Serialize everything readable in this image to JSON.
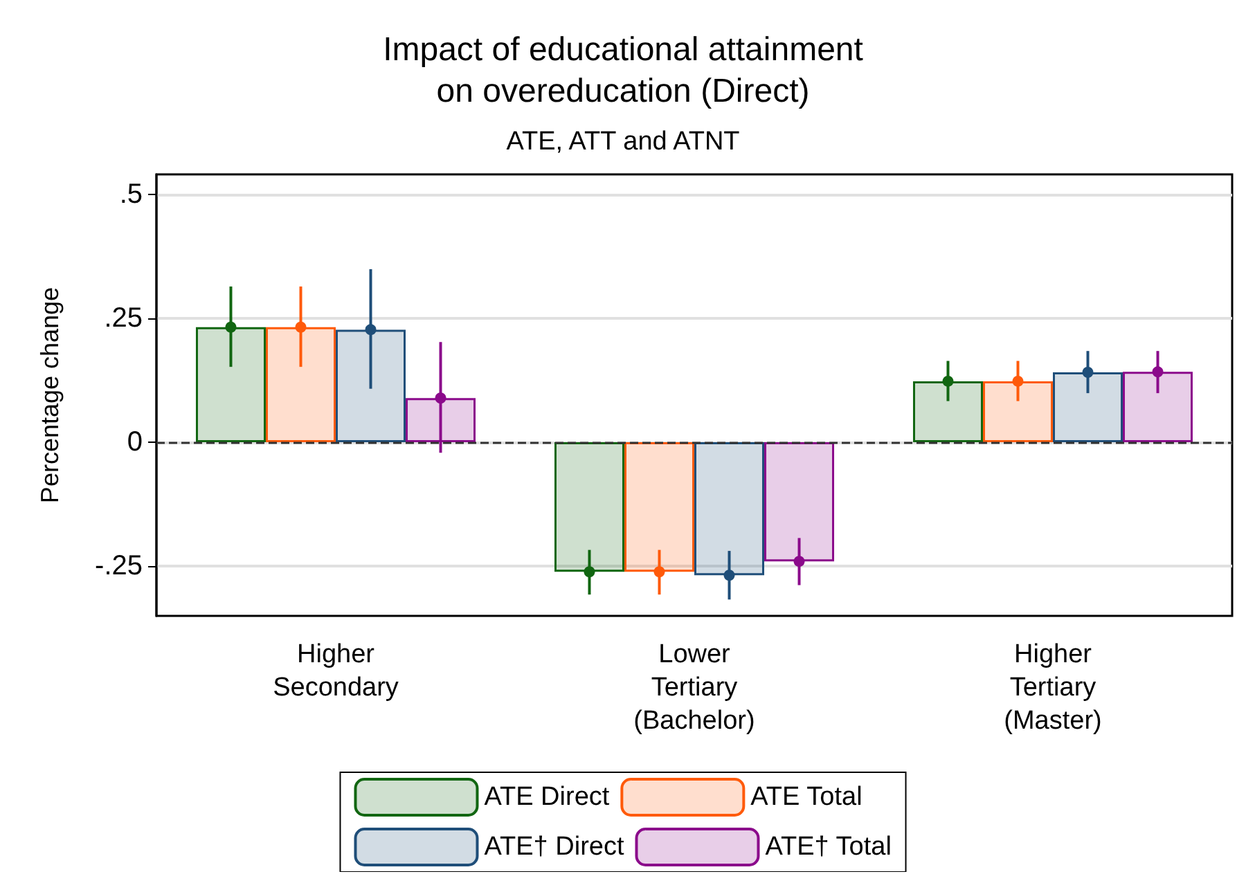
{
  "chart_data": {
    "type": "bar",
    "title": "Impact of educational attainment\non overeducation (Direct)",
    "subtitle": "ATE, ATT and ATNT",
    "ylabel": "Percentage change",
    "categories": [
      "Higher\nSecondary",
      "Lower\nTertiary\n(Bachelor)",
      "Higher\nTertiary\n(Master)"
    ],
    "series": [
      {
        "name": "ATE Direct",
        "color": "#116611",
        "values": [
          0.232,
          -0.261,
          0.123
        ]
      },
      {
        "name": "ATE Total",
        "color": "#ff5a0a",
        "values": [
          0.232,
          -0.261,
          0.123
        ]
      },
      {
        "name": "ATE† Direct",
        "color": "#1f4e79",
        "values": [
          0.227,
          -0.268,
          0.141
        ]
      },
      {
        "name": "ATE† Total",
        "color": "#8b0a8b",
        "values": [
          0.089,
          -0.24,
          0.142
        ]
      },
      {
        "type": "scatter",
        "color": "#116611",
        "x": [
          "Higher\nSecondary",
          "Lower\nTertiary\n(Bachelor)",
          "Higher\nTertiary\n(Master)"
        ],
        "values": [
          0.232,
          -0.261,
          0.123
        ],
        "errors": [
          [
            0.152,
            0.314
          ],
          [
            -0.307,
            -0.217
          ],
          [
            0.083,
            0.164
          ]
        ]
      },
      {
        "type": "scatter",
        "color": "#ff5a0a",
        "x": [
          "Higher\nSecondary",
          "Lower\nTertiary\n(Bachelor)",
          "Higher\nTertiary\n(Master)"
        ],
        "values": [
          0.232,
          -0.261,
          0.123
        ],
        "errors": [
          [
            0.152,
            0.314
          ],
          [
            -0.307,
            -0.217
          ],
          [
            0.083,
            0.164
          ]
        ]
      },
      {
        "type": "scatter",
        "color": "#1f4e79",
        "x": [
          "Higher\nSecondary",
          "Lower\nTertiary\n(Bachelor)",
          "Higher\nTertiary\n(Master)"
        ],
        "values": [
          0.227,
          -0.268,
          0.141
        ],
        "errors": [
          [
            0.108,
            0.349
          ],
          [
            -0.317,
            -0.219
          ],
          [
            0.099,
            0.184
          ]
        ]
      },
      {
        "type": "scatter",
        "color": "#8b0a8b",
        "x": [
          "Higher\nSecondary",
          "Lower\nTertiary\n(Bachelor)",
          "Higher\nTertiary\n(Master)"
        ],
        "values": [
          0.089,
          -0.24,
          0.142
        ],
        "errors": [
          [
            -0.021,
            0.202
          ],
          [
            -0.288,
            -0.193
          ],
          [
            0.099,
            0.184
          ]
        ]
      }
    ],
    "ylim": [
      -0.35,
      0.54
    ],
    "yticks": [
      {
        "value": -0.25,
        "label": "-.25"
      },
      0,
      {
        "value": 0.25,
        "label": ".25"
      },
      {
        "value": 0.5,
        "label": ".5"
      }
    ],
    "ref_lines": [
      {
        "axis": "y",
        "value": 0,
        "line_style": "dashed",
        "color": "#333333"
      }
    ],
    "grid": "y",
    "legend": "bottom",
    "marker": "circle"
  }
}
